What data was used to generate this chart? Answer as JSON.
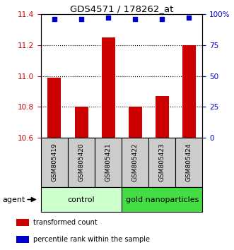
{
  "title": "GDS4571 / 178262_at",
  "samples": [
    "GSM805419",
    "GSM805420",
    "GSM805421",
    "GSM805422",
    "GSM805423",
    "GSM805424"
  ],
  "bar_values": [
    10.99,
    10.8,
    11.25,
    10.8,
    10.87,
    11.2
  ],
  "percentile_values": [
    96,
    96,
    97,
    96,
    96,
    97
  ],
  "ylim_left": [
    10.6,
    11.4
  ],
  "ylim_right": [
    0,
    100
  ],
  "yticks_left": [
    10.6,
    10.8,
    11.0,
    11.2,
    11.4
  ],
  "yticks_right": [
    0,
    25,
    50,
    75,
    100
  ],
  "bar_color": "#cc0000",
  "dot_color": "#0000cc",
  "bar_width": 0.5,
  "groups": [
    {
      "label": "control",
      "indices": [
        0,
        1,
        2
      ],
      "color": "#ccffcc"
    },
    {
      "label": "gold nanoparticles",
      "indices": [
        3,
        4,
        5
      ],
      "color": "#44dd44"
    }
  ],
  "legend_items": [
    {
      "label": "transformed count",
      "color": "#cc0000"
    },
    {
      "label": "percentile rank within the sample",
      "color": "#0000cc"
    }
  ],
  "agent_label": "agent",
  "sample_bg_color": "#cccccc",
  "axis_color_left": "#cc0000",
  "axis_color_right": "#0000cc"
}
